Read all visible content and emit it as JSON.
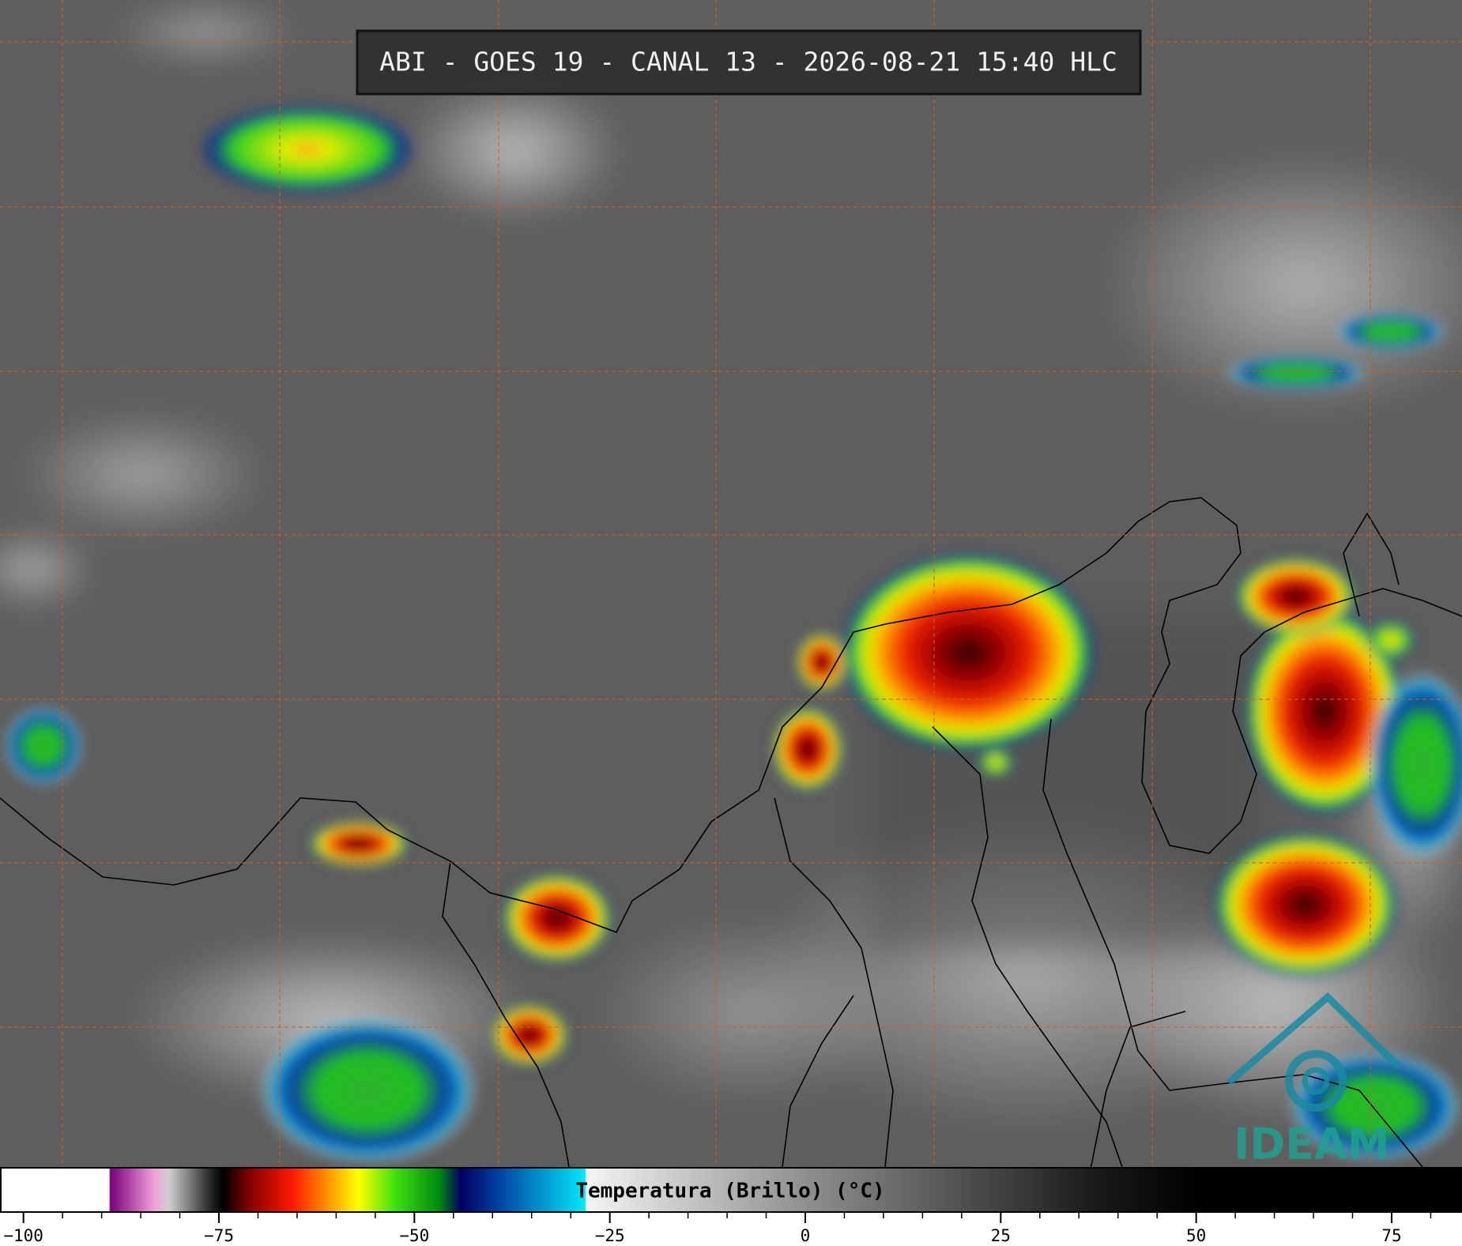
{
  "header": {
    "title": "ABI - GOES 19 - CANAL 13 - 2026-08-21 15:40 HLC"
  },
  "logo": "IDEAM",
  "colorbar": {
    "label": "Temperatura (Brillo) (°C)",
    "xlim": [
      -103,
      84
    ],
    "ticks": [
      {
        "value": -100,
        "label": "−100"
      },
      {
        "value": -75,
        "label": "−75"
      },
      {
        "value": -50,
        "label": "−50"
      },
      {
        "value": -25,
        "label": "−25"
      },
      0,
      25,
      50,
      75
    ],
    "minor_ticks": [
      -95,
      -90,
      -85,
      -80,
      -70,
      -65,
      -60,
      -55,
      -45,
      -40,
      -35,
      -30,
      -20,
      -15,
      -10,
      -5,
      5,
      10,
      15,
      20,
      30,
      35,
      40,
      45,
      55,
      60,
      65,
      70,
      80
    ]
  }
}
